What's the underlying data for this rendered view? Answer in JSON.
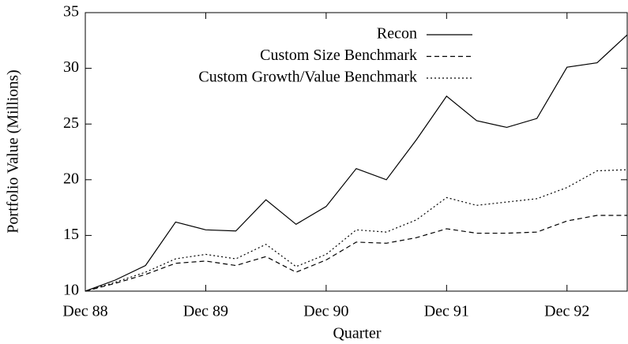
{
  "chart_data": {
    "type": "line",
    "x_label": "Quarter",
    "y_label": "Portfolio Value (Millions)",
    "categories": [
      "Dec 88",
      null,
      null,
      null,
      "Dec 89",
      null,
      null,
      null,
      "Dec 90",
      null,
      null,
      null,
      "Dec 91",
      null,
      null,
      null,
      "Dec 92",
      null,
      null
    ],
    "series": [
      {
        "name": "Recon",
        "color": "#000000",
        "dash": "none",
        "values": [
          10,
          11.0,
          12.3,
          16.2,
          15.5,
          15.4,
          18.2,
          16.0,
          17.6,
          21.0,
          20.0,
          23.6,
          27.5,
          25.3,
          24.7,
          25.5,
          30.1,
          30.5,
          33.0
        ]
      },
      {
        "name": "Custom Size Benchmark",
        "color": "#000000",
        "dash": "6,4",
        "values": [
          10,
          10.7,
          11.5,
          12.5,
          12.7,
          12.3,
          13.1,
          11.7,
          12.8,
          14.4,
          14.3,
          14.8,
          15.6,
          15.2,
          15.2,
          15.3,
          16.3,
          16.8,
          16.8
        ]
      },
      {
        "name": "Custom Growth/Value Benchmark",
        "color": "#000000",
        "dash": "2,3",
        "values": [
          10,
          10.8,
          11.7,
          12.9,
          13.3,
          12.9,
          14.2,
          12.2,
          13.3,
          15.5,
          15.3,
          16.4,
          18.4,
          17.7,
          18.0,
          18.3,
          19.3,
          20.8,
          20.9
        ]
      }
    ],
    "ylim": [
      10,
      35
    ],
    "yticks": [
      10,
      15,
      20,
      25,
      30,
      35
    ],
    "legend": "top-right",
    "grid": false
  }
}
